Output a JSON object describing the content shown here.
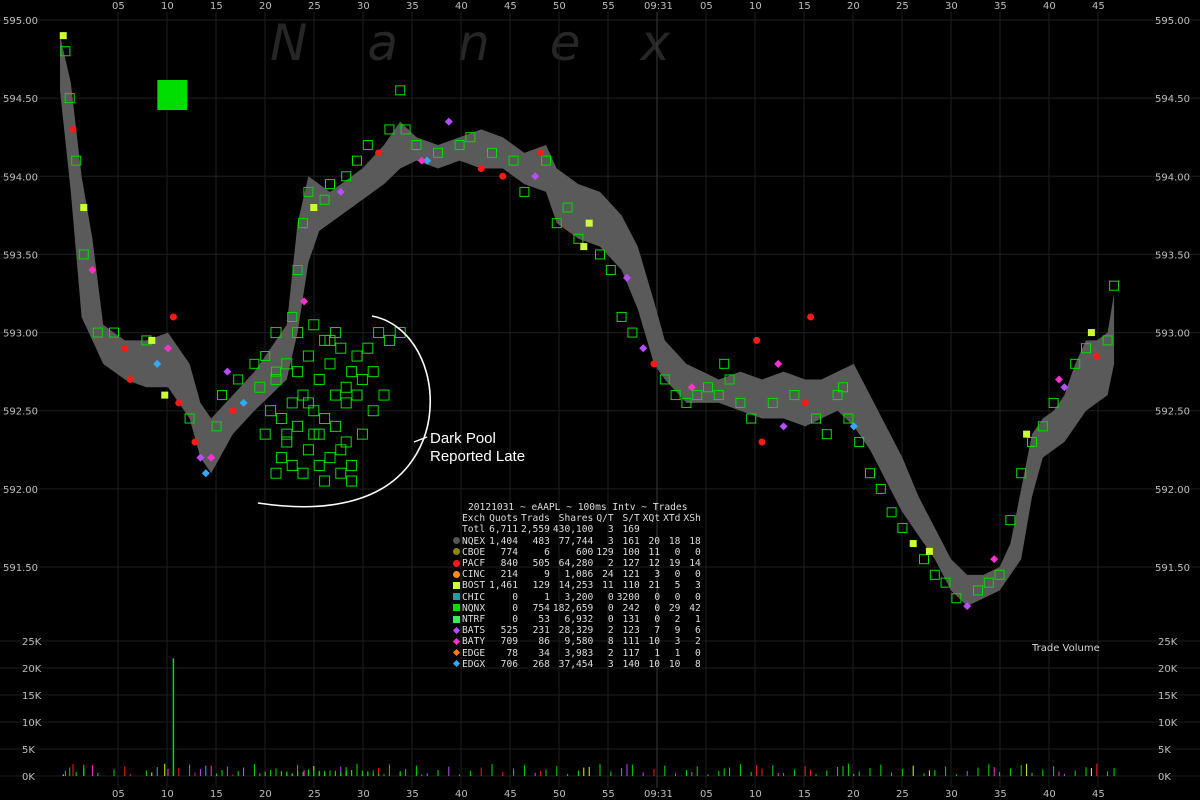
{
  "header": {
    "watermark": "Nanex"
  },
  "chart_data": {
    "type": "scatter",
    "symbol": "eAAPL",
    "date": "20121031",
    "price_axis": {
      "min": 591.2,
      "max": 595.0,
      "ticks": [
        "595.00",
        "594.50",
        "594.00",
        "593.50",
        "593.00",
        "592.50",
        "592.00",
        "591.50"
      ]
    },
    "volume_axis": {
      "max": 25000,
      "ticks": [
        "25K",
        "20K",
        "15K",
        "10K",
        "5K",
        "0K"
      ],
      "label": "Trade Volume"
    },
    "x_ticks": [
      "05",
      "10",
      "15",
      "20",
      "25",
      "30",
      "35",
      "40",
      "45",
      "50",
      "55",
      "09:31",
      "05",
      "10",
      "15",
      "20",
      "25",
      "30",
      "35",
      "40",
      "45"
    ],
    "annotation": {
      "line1": "Dark Pool",
      "line2": "Reported Late"
    },
    "colors": {
      "NQEX": "#555555",
      "CBOE": "#8a8a00",
      "PACF": "#ff1a1a",
      "CINC": "#ff8c1a",
      "BOST": "#ccff33",
      "CHIC": "#1fa0a0",
      "NQNX": "#00dd00",
      "NTRF": "#33ee55",
      "BATS": "#b84dff",
      "BATY": "#ff33cc",
      "EDGE": "#ff8000",
      "EDGX": "#33aaff",
      "band": "#5a5a5a"
    },
    "bbo_band": [
      [
        0.0,
        594.9,
        594.55
      ],
      [
        1.0,
        594.6,
        593.9
      ],
      [
        2.0,
        594.0,
        593.1
      ],
      [
        3.0,
        593.6,
        592.95
      ],
      [
        4.0,
        593.05,
        592.8
      ],
      [
        6.0,
        592.95,
        592.7
      ],
      [
        8.0,
        592.95,
        592.65
      ],
      [
        10.0,
        593.0,
        592.65
      ],
      [
        12.0,
        592.8,
        592.45
      ],
      [
        13.0,
        592.55,
        592.2
      ],
      [
        14.0,
        592.45,
        592.1
      ],
      [
        16.0,
        592.6,
        592.35
      ],
      [
        18.0,
        592.75,
        592.5
      ],
      [
        19.5,
        592.9,
        592.6
      ],
      [
        21.0,
        593.05,
        592.7
      ],
      [
        22.0,
        593.7,
        593.0
      ],
      [
        23.0,
        594.0,
        593.45
      ],
      [
        24.0,
        593.95,
        593.65
      ],
      [
        25.0,
        593.9,
        593.7
      ],
      [
        26.0,
        593.95,
        593.75
      ],
      [
        28.0,
        594.05,
        593.85
      ],
      [
        30.0,
        594.2,
        593.95
      ],
      [
        31.5,
        594.35,
        594.05
      ],
      [
        33.0,
        594.25,
        594.1
      ],
      [
        35.0,
        594.2,
        594.05
      ],
      [
        37.0,
        594.25,
        594.1
      ],
      [
        39.0,
        594.3,
        594.05
      ],
      [
        41.0,
        594.25,
        594.05
      ],
      [
        43.0,
        594.15,
        593.95
      ],
      [
        45.0,
        594.2,
        593.9
      ],
      [
        46.0,
        594.05,
        593.7
      ],
      [
        48.0,
        593.95,
        593.6
      ],
      [
        50.0,
        593.9,
        593.55
      ],
      [
        52.0,
        593.75,
        593.4
      ],
      [
        53.5,
        593.55,
        593.15
      ],
      [
        55.0,
        593.2,
        592.8
      ],
      [
        56.0,
        592.95,
        592.7
      ],
      [
        58.0,
        592.8,
        592.55
      ],
      [
        59.5,
        592.75,
        592.55
      ],
      [
        61.0,
        592.7,
        592.55
      ],
      [
        63.0,
        592.75,
        592.5
      ],
      [
        65.0,
        592.7,
        592.45
      ],
      [
        67.0,
        592.75,
        592.45
      ],
      [
        69.0,
        592.7,
        592.4
      ],
      [
        70.5,
        592.7,
        592.45
      ],
      [
        72.0,
        592.75,
        592.5
      ],
      [
        73.5,
        592.8,
        592.4
      ],
      [
        75.0,
        592.6,
        592.25
      ],
      [
        76.5,
        592.4,
        592.05
      ],
      [
        78.0,
        592.2,
        591.85
      ],
      [
        79.5,
        591.95,
        591.7
      ],
      [
        81.0,
        591.75,
        591.55
      ],
      [
        82.5,
        591.55,
        591.35
      ],
      [
        84.0,
        591.45,
        591.25
      ],
      [
        85.5,
        591.45,
        591.3
      ],
      [
        87.0,
        591.5,
        591.35
      ],
      [
        88.0,
        591.65,
        591.45
      ],
      [
        89.0,
        592.0,
        591.55
      ],
      [
        90.0,
        592.35,
        591.95
      ],
      [
        91.0,
        592.45,
        592.2
      ],
      [
        92.0,
        592.5,
        592.25
      ],
      [
        93.0,
        592.6,
        592.3
      ],
      [
        94.0,
        592.8,
        592.4
      ],
      [
        95.0,
        592.95,
        592.5
      ],
      [
        96.0,
        592.95,
        592.55
      ],
      [
        97.0,
        593.0,
        592.6
      ],
      [
        97.6,
        593.25,
        592.8
      ]
    ],
    "trades": [
      [
        0.3,
        594.9,
        "BOST"
      ],
      [
        0.5,
        594.8,
        "NQNX"
      ],
      [
        0.9,
        594.5,
        "NQNX"
      ],
      [
        1.2,
        594.3,
        "PACF"
      ],
      [
        1.5,
        594.1,
        "NQNX"
      ],
      [
        2.2,
        593.8,
        "BOST"
      ],
      [
        3.0,
        593.4,
        "BATY"
      ],
      [
        3.5,
        593.0,
        "NQNX"
      ],
      [
        5.0,
        593.0,
        "NQNX"
      ],
      [
        6.0,
        592.9,
        "PACF"
      ],
      [
        6.5,
        592.7,
        "PACF"
      ],
      [
        8.0,
        592.95,
        "NQNX"
      ],
      [
        9.0,
        592.8,
        "EDGX"
      ],
      [
        9.7,
        592.6,
        "BOST"
      ],
      [
        10.5,
        593.1,
        "PACF"
      ],
      [
        11.0,
        592.55,
        "PACF"
      ],
      [
        12.0,
        592.45,
        "NQNX"
      ],
      [
        12.5,
        592.3,
        "PACF"
      ],
      [
        13.0,
        592.2,
        "BATS"
      ],
      [
        13.5,
        592.1,
        "EDGX"
      ],
      [
        14.5,
        592.4,
        "NQNX"
      ],
      [
        15.0,
        592.6,
        "NQNX"
      ],
      [
        15.5,
        592.75,
        "BATS"
      ],
      [
        16.0,
        592.5,
        "PACF"
      ],
      [
        16.5,
        592.7,
        "NQNX"
      ],
      [
        17.0,
        592.55,
        "EDGX"
      ],
      [
        18.0,
        592.8,
        "NQNX"
      ],
      [
        19.0,
        592.85,
        "NQNX"
      ],
      [
        20.0,
        592.75,
        "NQNX"
      ],
      [
        22.0,
        593.4,
        "NQNX"
      ],
      [
        22.5,
        593.7,
        "NQNX"
      ],
      [
        23.0,
        593.9,
        "NQNX"
      ],
      [
        23.5,
        593.8,
        "BOST"
      ],
      [
        24.5,
        593.85,
        "NQNX"
      ],
      [
        25.0,
        593.95,
        "NQNX"
      ],
      [
        26.5,
        594.0,
        "NQNX"
      ],
      [
        27.5,
        594.1,
        "NQNX"
      ],
      [
        28.5,
        594.2,
        "NQNX"
      ],
      [
        29.5,
        594.15,
        "PACF"
      ],
      [
        30.5,
        594.3,
        "NQNX"
      ],
      [
        31.5,
        594.55,
        "NQNX"
      ],
      [
        32.0,
        594.3,
        "NQNX"
      ],
      [
        33.0,
        594.2,
        "NQNX"
      ],
      [
        34.0,
        594.1,
        "EDGX"
      ],
      [
        35.0,
        594.15,
        "NQNX"
      ],
      [
        36.0,
        594.35,
        "BATS"
      ],
      [
        37.0,
        594.2,
        "NQNX"
      ],
      [
        38.0,
        594.25,
        "NQNX"
      ],
      [
        39.0,
        594.05,
        "PACF"
      ],
      [
        40.0,
        594.15,
        "NQNX"
      ],
      [
        41.0,
        594.0,
        "PACF"
      ],
      [
        42.0,
        594.1,
        "NQNX"
      ],
      [
        43.0,
        593.9,
        "NQNX"
      ],
      [
        44.0,
        594.0,
        "BATS"
      ],
      [
        45.0,
        594.1,
        "NQNX"
      ],
      [
        46.0,
        593.7,
        "NQNX"
      ],
      [
        47.0,
        593.8,
        "NQNX"
      ],
      [
        48.0,
        593.6,
        "NQNX"
      ],
      [
        49.0,
        593.7,
        "BOST"
      ],
      [
        50.0,
        593.5,
        "NQNX"
      ],
      [
        51.0,
        593.4,
        "NQNX"
      ],
      [
        52.0,
        593.1,
        "NQNX"
      ],
      [
        53.0,
        593.0,
        "NQNX"
      ],
      [
        54.0,
        592.9,
        "BATS"
      ],
      [
        55.0,
        592.8,
        "PACF"
      ],
      [
        56.0,
        592.7,
        "NQNX"
      ],
      [
        57.0,
        592.6,
        "NQNX"
      ],
      [
        58.0,
        592.55,
        "NQNX"
      ],
      [
        59.0,
        592.6,
        "NQNX"
      ],
      [
        60.0,
        592.65,
        "NQNX"
      ],
      [
        61.0,
        592.6,
        "NQNX"
      ],
      [
        62.0,
        592.7,
        "NQNX"
      ],
      [
        63.0,
        592.55,
        "NQNX"
      ],
      [
        64.0,
        592.45,
        "NQNX"
      ],
      [
        65.0,
        592.3,
        "PACF"
      ],
      [
        66.0,
        592.55,
        "NQNX"
      ],
      [
        67.0,
        592.4,
        "BATS"
      ],
      [
        68.0,
        592.6,
        "NQNX"
      ],
      [
        69.0,
        592.55,
        "PACF"
      ],
      [
        70.0,
        592.45,
        "NQNX"
      ],
      [
        71.0,
        592.35,
        "NQNX"
      ],
      [
        72.0,
        592.6,
        "NQNX"
      ],
      [
        73.0,
        592.45,
        "NQNX"
      ],
      [
        74.0,
        592.3,
        "NQNX"
      ],
      [
        75.0,
        592.1,
        "NQNX"
      ],
      [
        76.0,
        592.0,
        "NQNX"
      ],
      [
        77.0,
        591.85,
        "NQNX"
      ],
      [
        78.0,
        591.75,
        "NQNX"
      ],
      [
        79.0,
        591.65,
        "BOST"
      ],
      [
        80.0,
        591.55,
        "NQNX"
      ],
      [
        81.0,
        591.45,
        "NQNX"
      ],
      [
        82.0,
        591.4,
        "NQNX"
      ],
      [
        83.0,
        591.3,
        "NQNX"
      ],
      [
        84.0,
        591.25,
        "BATS"
      ],
      [
        85.0,
        591.35,
        "NQNX"
      ],
      [
        86.0,
        591.4,
        "NQNX"
      ],
      [
        87.0,
        591.45,
        "NQNX"
      ],
      [
        88.0,
        591.8,
        "NQNX"
      ],
      [
        89.0,
        592.1,
        "NQNX"
      ],
      [
        90.0,
        592.3,
        "NQNX"
      ],
      [
        91.0,
        592.4,
        "NQNX"
      ],
      [
        92.0,
        592.55,
        "NQNX"
      ],
      [
        93.0,
        592.65,
        "BATS"
      ],
      [
        94.0,
        592.8,
        "NQNX"
      ],
      [
        95.0,
        592.9,
        "NQNX"
      ],
      [
        96.0,
        592.85,
        "PACF"
      ],
      [
        97.0,
        592.95,
        "NQNX"
      ],
      [
        97.6,
        593.3,
        "NQNX"
      ],
      [
        2.2,
        593.5,
        "NQNX"
      ],
      [
        8.5,
        592.95,
        "BOST"
      ],
      [
        10.0,
        592.9,
        "BATY"
      ],
      [
        14.0,
        592.2,
        "BATY"
      ],
      [
        21.5,
        593.1,
        "NQNX"
      ],
      [
        22.6,
        593.2,
        "BATY"
      ],
      [
        26.0,
        593.9,
        "BATS"
      ],
      [
        33.5,
        594.1,
        "BATY"
      ],
      [
        44.5,
        594.15,
        "PACF"
      ],
      [
        48.5,
        593.55,
        "BOST"
      ],
      [
        52.5,
        593.35,
        "BATS"
      ],
      [
        58.5,
        592.65,
        "BATY"
      ],
      [
        61.5,
        592.8,
        "NQNX"
      ],
      [
        64.5,
        592.95,
        "PACF"
      ],
      [
        66.5,
        592.8,
        "BATY"
      ],
      [
        69.5,
        593.1,
        "PACF"
      ],
      [
        72.5,
        592.65,
        "NQNX"
      ],
      [
        73.5,
        592.4,
        "EDGX"
      ],
      [
        80.5,
        591.6,
        "BOST"
      ],
      [
        86.5,
        591.55,
        "BATY"
      ],
      [
        89.5,
        592.35,
        "BOST"
      ],
      [
        92.5,
        592.7,
        "BATY"
      ],
      [
        95.5,
        593.0,
        "BOST"
      ]
    ],
    "dark_pool_trades": [
      [
        20.0,
        592.1
      ],
      [
        20.5,
        592.2
      ],
      [
        21.0,
        592.3
      ],
      [
        21.5,
        592.15
      ],
      [
        22.0,
        592.4
      ],
      [
        22.5,
        592.1
      ],
      [
        23.0,
        592.25
      ],
      [
        23.5,
        592.35
      ],
      [
        24.0,
        592.15
      ],
      [
        24.5,
        592.05
      ],
      [
        25.0,
        592.2
      ],
      [
        25.5,
        592.4
      ],
      [
        26.0,
        592.1
      ],
      [
        26.5,
        592.3
      ],
      [
        27.0,
        592.05
      ],
      [
        20.5,
        592.45
      ],
      [
        21.5,
        592.55
      ],
      [
        22.5,
        592.6
      ],
      [
        23.5,
        592.5
      ],
      [
        24.5,
        592.45
      ],
      [
        25.5,
        592.6
      ],
      [
        26.5,
        592.55
      ],
      [
        27.5,
        592.6
      ],
      [
        28.0,
        592.35
      ],
      [
        20.0,
        592.7
      ],
      [
        21.0,
        592.8
      ],
      [
        22.0,
        592.75
      ],
      [
        23.0,
        592.85
      ],
      [
        24.0,
        592.7
      ],
      [
        25.0,
        592.8
      ],
      [
        26.0,
        592.9
      ],
      [
        27.0,
        592.75
      ],
      [
        28.5,
        592.9
      ],
      [
        29.5,
        593.0
      ],
      [
        30.5,
        592.95
      ],
      [
        31.5,
        593.0
      ],
      [
        22.0,
        593.0
      ],
      [
        23.5,
        593.05
      ],
      [
        25.0,
        592.95
      ],
      [
        26.5,
        592.65
      ],
      [
        21.0,
        592.35
      ],
      [
        23.0,
        592.55
      ],
      [
        24.0,
        592.35
      ],
      [
        26.0,
        592.25
      ],
      [
        27.0,
        592.15
      ],
      [
        28.0,
        592.7
      ],
      [
        27.5,
        592.85
      ],
      [
        29.0,
        592.75
      ],
      [
        19.5,
        592.5
      ],
      [
        19.0,
        592.35
      ],
      [
        18.5,
        592.65
      ],
      [
        20.0,
        593.0
      ],
      [
        24.5,
        592.95
      ],
      [
        25.5,
        593.0
      ],
      [
        30.0,
        592.6
      ],
      [
        29.0,
        592.5
      ]
    ],
    "volume_spike": {
      "t": 10.5,
      "v": 21800
    },
    "big_block": {
      "t": 10.4,
      "price": 594.52
    },
    "stats_table": {
      "title": "20121031 ~ eAAPL ~ 100ms Intv ~ Trades",
      "columns": [
        "Exch",
        "Quots",
        "Trads",
        "Shares",
        "Q/T",
        "S/T",
        "XQt",
        "XTd",
        "XSh"
      ],
      "total": [
        "Totl",
        "6,711",
        "2,559",
        "430,100",
        "3",
        "169",
        "",
        "",
        ""
      ],
      "rows": [
        {
          "exch": "NQEX",
          "quots": "1,404",
          "trads": "483",
          "shares": "77,744",
          "qt": "3",
          "st": "161",
          "xqt": "20",
          "xtd": "18",
          "xsh": "18"
        },
        {
          "exch": "CBOE",
          "quots": "774",
          "trads": "6",
          "shares": "600",
          "qt": "129",
          "st": "100",
          "xqt": "11",
          "xtd": "0",
          "xsh": "0"
        },
        {
          "exch": "PACF",
          "quots": "840",
          "trads": "505",
          "shares": "64,280",
          "qt": "2",
          "st": "127",
          "xqt": "12",
          "xtd": "19",
          "xsh": "14"
        },
        {
          "exch": "CINC",
          "quots": "214",
          "trads": "9",
          "shares": "1,086",
          "qt": "24",
          "st": "121",
          "xqt": "3",
          "xtd": "0",
          "xsh": "0"
        },
        {
          "exch": "BOST",
          "quots": "1,461",
          "trads": "129",
          "shares": "14,253",
          "qt": "11",
          "st": "110",
          "xqt": "21",
          "xtd": "5",
          "xsh": "3"
        },
        {
          "exch": "CHIC",
          "quots": "0",
          "trads": "1",
          "shares": "3,200",
          "qt": "0",
          "st": "3200",
          "xqt": "0",
          "xtd": "0",
          "xsh": "0"
        },
        {
          "exch": "NQNX",
          "quots": "0",
          "trads": "754",
          "shares": "182,659",
          "qt": "0",
          "st": "242",
          "xqt": "0",
          "xtd": "29",
          "xsh": "42"
        },
        {
          "exch": "NTRF",
          "quots": "0",
          "trads": "53",
          "shares": "6,932",
          "qt": "0",
          "st": "131",
          "xqt": "0",
          "xtd": "2",
          "xsh": "1"
        },
        {
          "exch": "BATS",
          "quots": "525",
          "trads": "231",
          "shares": "28,329",
          "qt": "2",
          "st": "123",
          "xqt": "7",
          "xtd": "9",
          "xsh": "6"
        },
        {
          "exch": "BATY",
          "quots": "709",
          "trads": "86",
          "shares": "9,580",
          "qt": "8",
          "st": "111",
          "xqt": "10",
          "xtd": "3",
          "xsh": "2"
        },
        {
          "exch": "EDGE",
          "quots": "78",
          "trads": "34",
          "shares": "3,983",
          "qt": "2",
          "st": "117",
          "xqt": "1",
          "xtd": "1",
          "xsh": "0"
        },
        {
          "exch": "EDGX",
          "quots": "706",
          "trads": "268",
          "shares": "37,454",
          "qt": "3",
          "st": "140",
          "xqt": "10",
          "xtd": "10",
          "xsh": "8"
        }
      ]
    }
  }
}
